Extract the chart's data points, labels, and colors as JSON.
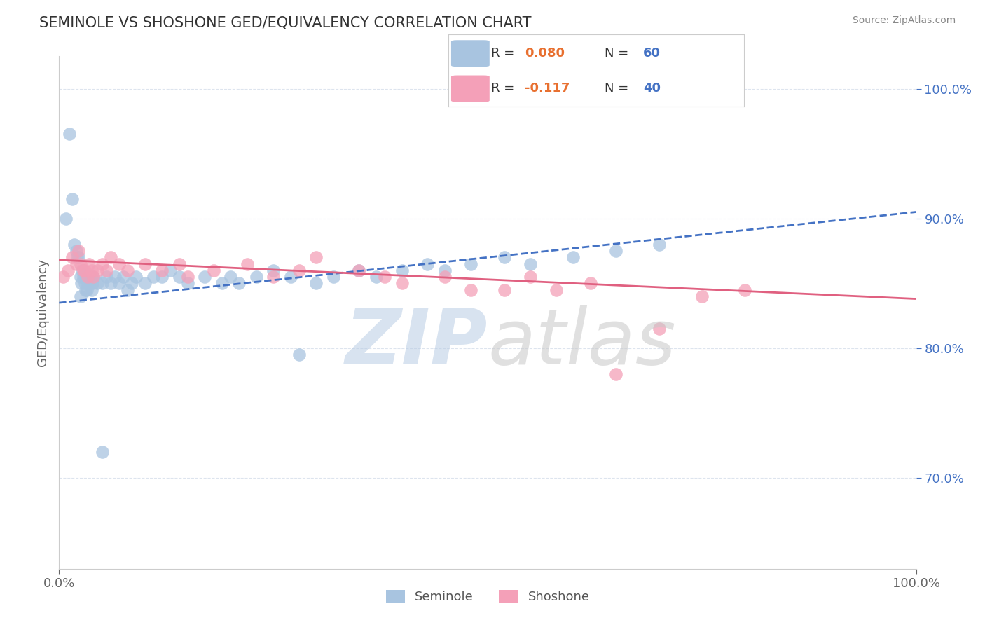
{
  "title": "SEMINOLE VS SHOSHONE GED/EQUIVALENCY CORRELATION CHART",
  "source": "Source: ZipAtlas.com",
  "ylabel": "GED/Equivalency",
  "legend_seminole": "Seminole",
  "legend_shoshone": "Shoshone",
  "r_seminole": 0.08,
  "n_seminole": 60,
  "r_shoshone": -0.117,
  "n_shoshone": 40,
  "x_min": 0.0,
  "x_max": 100.0,
  "y_min": 63.0,
  "y_max": 102.5,
  "y_ticks": [
    70.0,
    80.0,
    90.0,
    100.0
  ],
  "color_seminole": "#a8c4e0",
  "color_shoshone": "#f4a0b8",
  "line_color_seminole": "#4472c4",
  "line_color_shoshone": "#e06080",
  "watermark_zip_color": "#b8cce4",
  "watermark_atlas_color": "#c8c8c8",
  "background": "#ffffff",
  "grid_color": "#dde4ee",
  "legend_r_color": "#333333",
  "legend_n_color": "#4472c4",
  "legend_val_color": "#e87030",
  "title_color": "#333333",
  "source_color": "#888888",
  "tick_color": "#4472c4",
  "sem_x": [
    1.2,
    0.8,
    1.5,
    1.8,
    2.0,
    2.1,
    2.3,
    2.5,
    2.5,
    2.6,
    2.7,
    2.8,
    3.0,
    3.1,
    3.2,
    3.3,
    3.5,
    3.6,
    3.7,
    3.8,
    3.9,
    4.0,
    4.5,
    5.0,
    5.5,
    6.0,
    6.5,
    7.0,
    7.5,
    8.0,
    8.5,
    9.0,
    10.0,
    11.0,
    12.0,
    13.0,
    14.0,
    15.0,
    17.0,
    19.0,
    20.0,
    21.0,
    23.0,
    25.0,
    27.0,
    30.0,
    32.0,
    35.0,
    37.0,
    40.0,
    43.0,
    45.0,
    48.0,
    52.0,
    55.0,
    60.0,
    65.0,
    70.0,
    5.0,
    28.0
  ],
  "sem_y": [
    96.5,
    90.0,
    91.5,
    88.0,
    87.5,
    87.0,
    87.0,
    85.5,
    84.0,
    85.0,
    86.0,
    85.5,
    85.0,
    84.5,
    84.5,
    85.0,
    85.5,
    85.0,
    85.5,
    84.5,
    85.0,
    85.5,
    85.0,
    85.0,
    85.5,
    85.0,
    85.5,
    85.0,
    85.5,
    84.5,
    85.0,
    85.5,
    85.0,
    85.5,
    85.5,
    86.0,
    85.5,
    85.0,
    85.5,
    85.0,
    85.5,
    85.0,
    85.5,
    86.0,
    85.5,
    85.0,
    85.5,
    86.0,
    85.5,
    86.0,
    86.5,
    86.0,
    86.5,
    87.0,
    86.5,
    87.0,
    87.5,
    88.0,
    72.0,
    79.5
  ],
  "sho_x": [
    0.5,
    1.0,
    1.5,
    2.0,
    2.3,
    2.5,
    2.8,
    3.0,
    3.3,
    3.5,
    3.8,
    4.0,
    4.5,
    5.0,
    5.5,
    6.0,
    7.0,
    8.0,
    10.0,
    12.0,
    14.0,
    15.0,
    18.0,
    22.0,
    25.0,
    28.0,
    30.0,
    35.0,
    38.0,
    40.0,
    45.0,
    48.0,
    52.0,
    55.0,
    58.0,
    62.0,
    65.0,
    70.0,
    75.0,
    80.0
  ],
  "sho_y": [
    85.5,
    86.0,
    87.0,
    86.5,
    87.5,
    86.5,
    86.0,
    86.0,
    85.5,
    86.5,
    86.0,
    85.5,
    86.0,
    86.5,
    86.0,
    87.0,
    86.5,
    86.0,
    86.5,
    86.0,
    86.5,
    85.5,
    86.0,
    86.5,
    85.5,
    86.0,
    87.0,
    86.0,
    85.5,
    85.0,
    85.5,
    84.5,
    84.5,
    85.5,
    84.5,
    85.0,
    78.0,
    81.5,
    84.0,
    84.5
  ]
}
